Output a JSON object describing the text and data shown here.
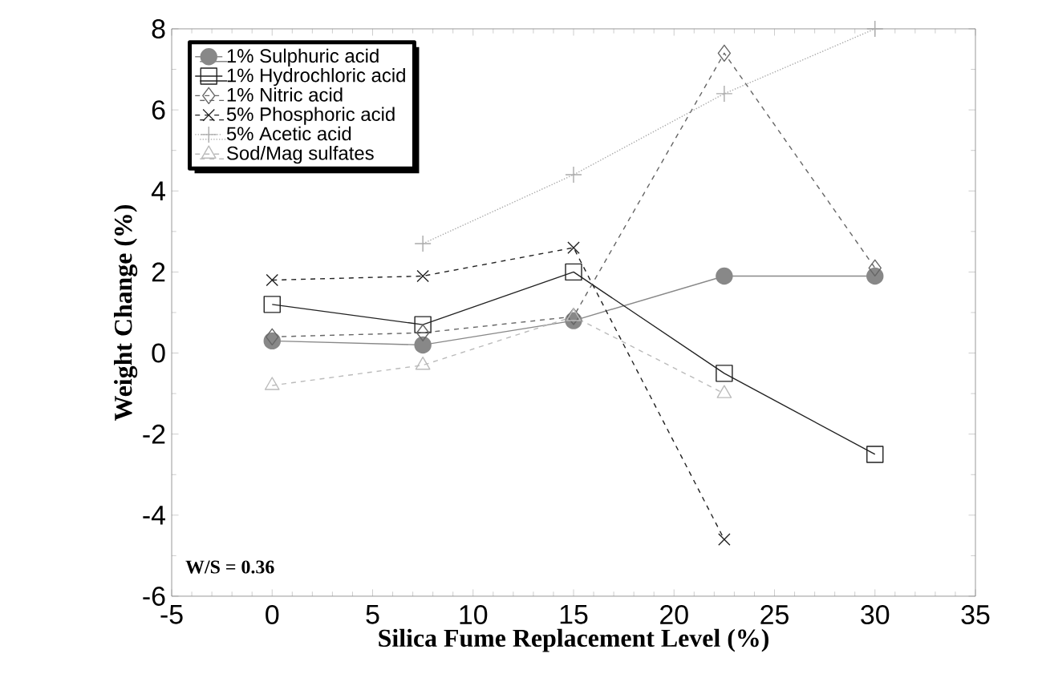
{
  "chart_data": {
    "type": "line",
    "xlabel": "Silica Fume Replacement Level (%)",
    "ylabel": "Weight Change (%)",
    "x": [
      0,
      7.5,
      15,
      22.5,
      30
    ],
    "series": [
      {
        "name": "1% Sulphuric acid",
        "color": "#888888",
        "marker": "circle",
        "line_style": "solid",
        "values": [
          0.3,
          0.2,
          0.8,
          1.9,
          1.9
        ]
      },
      {
        "name": "1% Hydrochloric acid",
        "color": "#222222",
        "marker": "square",
        "line_style": "solid",
        "values": [
          1.2,
          0.7,
          2.0,
          -0.5,
          -2.5
        ]
      },
      {
        "name": "1% Nitric acid",
        "color": "#666666",
        "marker": "diamond",
        "line_style": "dashed",
        "values": [
          0.4,
          0.5,
          0.9,
          7.4,
          2.1
        ]
      },
      {
        "name": "5% Phosphoric acid",
        "color": "#222222",
        "marker": "cross",
        "line_style": "dashed",
        "values": [
          1.8,
          1.9,
          2.6,
          -4.6,
          null
        ]
      },
      {
        "name": "5% Acetic acid",
        "color": "#aaaaaa",
        "marker": "cross",
        "line_style": "dotted",
        "values": [
          null,
          2.7,
          4.4,
          6.4,
          8.0
        ]
      },
      {
        "name": "Sod/Mag sulfates",
        "color": "#bbbbbb",
        "marker": "triangle",
        "line_style": "dashed",
        "values": [
          -0.8,
          -0.3,
          0.9,
          -1.0,
          null
        ]
      }
    ],
    "xlim": [
      -5,
      35
    ],
    "xticks": [
      -5,
      0,
      5,
      10,
      15,
      20,
      25,
      30,
      35
    ],
    "ylim": [
      -6,
      8
    ],
    "yticks": [
      -6,
      -4,
      -2,
      0,
      2,
      4,
      6,
      8
    ],
    "annotations": [
      "W/S = 0.36"
    ],
    "legend": "top left",
    "grid": false
  }
}
